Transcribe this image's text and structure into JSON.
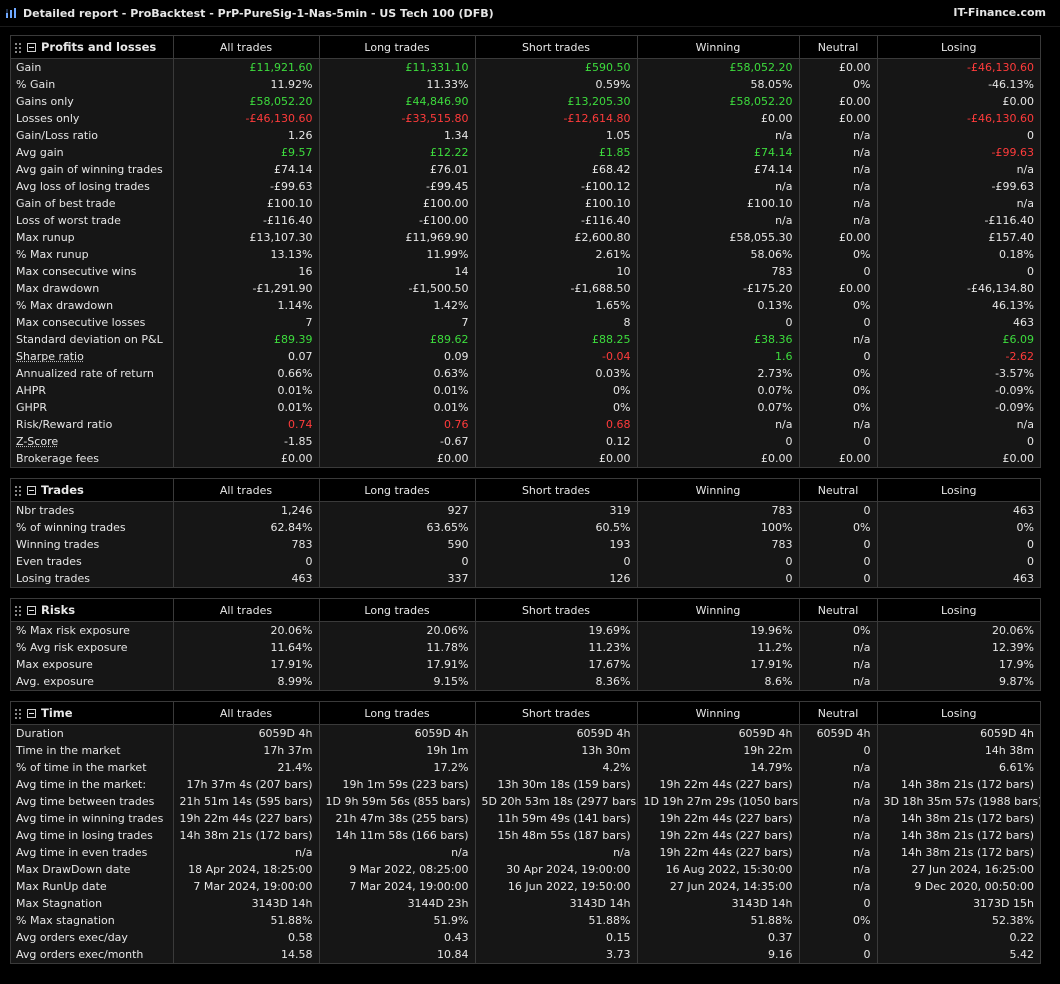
{
  "window": {
    "title": "Detailed report - ProBacktest - PrP-PureSig-1-Nas-5min - US Tech 100 (DFB)",
    "brand": "IT-Finance.com"
  },
  "columns": [
    "All trades",
    "Long trades",
    "Short trades",
    "Winning",
    "Neutral",
    "Losing"
  ],
  "colors": {
    "positive": "#3ddc3d",
    "negative": "#ff3b3b"
  },
  "sections": [
    {
      "id": "profits-and-losses",
      "title": "Profits and losses",
      "rows": [
        {
          "label": "Gain",
          "values": [
            "£11,921.60",
            "£11,331.10",
            "£590.50",
            "£58,052.20",
            "£0.00",
            "-£46,130.60"
          ],
          "colors": [
            "pos",
            "pos",
            "pos",
            "pos",
            "",
            "neg"
          ]
        },
        {
          "label": "% Gain",
          "values": [
            "11.92%",
            "11.33%",
            "0.59%",
            "58.05%",
            "0%",
            "-46.13%"
          ]
        },
        {
          "label": "Gains only",
          "values": [
            "£58,052.20",
            "£44,846.90",
            "£13,205.30",
            "£58,052.20",
            "£0.00",
            "£0.00"
          ],
          "colors": [
            "pos",
            "pos",
            "pos",
            "pos",
            "",
            ""
          ]
        },
        {
          "label": "Losses only",
          "values": [
            "-£46,130.60",
            "-£33,515.80",
            "-£12,614.80",
            "£0.00",
            "£0.00",
            "-£46,130.60"
          ],
          "colors": [
            "neg",
            "neg",
            "neg",
            "",
            "",
            "neg"
          ]
        },
        {
          "label": "Gain/Loss ratio",
          "values": [
            "1.26",
            "1.34",
            "1.05",
            "n/a",
            "n/a",
            "0"
          ]
        },
        {
          "label": "Avg gain",
          "values": [
            "£9.57",
            "£12.22",
            "£1.85",
            "£74.14",
            "n/a",
            "-£99.63"
          ],
          "colors": [
            "pos",
            "pos",
            "pos",
            "pos",
            "",
            "neg"
          ]
        },
        {
          "label": "Avg gain of winning trades",
          "values": [
            "£74.14",
            "£76.01",
            "£68.42",
            "£74.14",
            "n/a",
            "n/a"
          ]
        },
        {
          "label": "Avg loss of losing trades",
          "values": [
            "-£99.63",
            "-£99.45",
            "-£100.12",
            "n/a",
            "n/a",
            "-£99.63"
          ]
        },
        {
          "label": "Gain of best trade",
          "values": [
            "£100.10",
            "£100.00",
            "£100.10",
            "£100.10",
            "n/a",
            "n/a"
          ]
        },
        {
          "label": "Loss of worst trade",
          "values": [
            "-£116.40",
            "-£100.00",
            "-£116.40",
            "n/a",
            "n/a",
            "-£116.40"
          ]
        },
        {
          "label": "Max runup",
          "values": [
            "£13,107.30",
            "£11,969.90",
            "£2,600.80",
            "£58,055.30",
            "£0.00",
            "£157.40"
          ]
        },
        {
          "label": "% Max runup",
          "values": [
            "13.13%",
            "11.99%",
            "2.61%",
            "58.06%",
            "0%",
            "0.18%"
          ]
        },
        {
          "label": "Max consecutive wins",
          "values": [
            "16",
            "14",
            "10",
            "783",
            "0",
            "0"
          ]
        },
        {
          "label": "Max drawdown",
          "values": [
            "-£1,291.90",
            "-£1,500.50",
            "-£1,688.50",
            "-£175.20",
            "£0.00",
            "-£46,134.80"
          ]
        },
        {
          "label": "% Max drawdown",
          "values": [
            "1.14%",
            "1.42%",
            "1.65%",
            "0.13%",
            "0%",
            "46.13%"
          ]
        },
        {
          "label": "Max consecutive losses",
          "values": [
            "7",
            "7",
            "8",
            "0",
            "0",
            "463"
          ]
        },
        {
          "label": "Standard deviation on P&L",
          "values": [
            "£89.39",
            "£89.62",
            "£88.25",
            "£38.36",
            "n/a",
            "£6.09"
          ],
          "colors": [
            "pos",
            "pos",
            "pos",
            "pos",
            "",
            "pos"
          ]
        },
        {
          "label": "Sharpe ratio",
          "dotted": true,
          "values": [
            "0.07",
            "0.09",
            "-0.04",
            "1.6",
            "0",
            "-2.62"
          ],
          "colors": [
            "",
            "",
            "neg",
            "pos",
            "",
            "neg"
          ]
        },
        {
          "label": "Annualized rate of return",
          "values": [
            "0.66%",
            "0.63%",
            "0.03%",
            "2.73%",
            "0%",
            "-3.57%"
          ]
        },
        {
          "label": "AHPR",
          "values": [
            "0.01%",
            "0.01%",
            "0%",
            "0.07%",
            "0%",
            "-0.09%"
          ]
        },
        {
          "label": "GHPR",
          "values": [
            "0.01%",
            "0.01%",
            "0%",
            "0.07%",
            "0%",
            "-0.09%"
          ]
        },
        {
          "label": "Risk/Reward ratio",
          "values": [
            "0.74",
            "0.76",
            "0.68",
            "n/a",
            "n/a",
            "n/a"
          ],
          "colors": [
            "neg",
            "neg",
            "neg",
            "",
            "",
            ""
          ]
        },
        {
          "label": "Z-Score",
          "dotted": true,
          "values": [
            "-1.85",
            "-0.67",
            "0.12",
            "0",
            "0",
            "0"
          ]
        },
        {
          "label": "Brokerage fees",
          "values": [
            "£0.00",
            "£0.00",
            "£0.00",
            "£0.00",
            "£0.00",
            "£0.00"
          ]
        }
      ]
    },
    {
      "id": "trades",
      "title": "Trades",
      "rows": [
        {
          "label": "Nbr trades",
          "values": [
            "1,246",
            "927",
            "319",
            "783",
            "0",
            "463"
          ]
        },
        {
          "label": "% of winning trades",
          "values": [
            "62.84%",
            "63.65%",
            "60.5%",
            "100%",
            "0%",
            "0%"
          ]
        },
        {
          "label": "Winning trades",
          "values": [
            "783",
            "590",
            "193",
            "783",
            "0",
            "0"
          ]
        },
        {
          "label": "Even trades",
          "values": [
            "0",
            "0",
            "0",
            "0",
            "0",
            "0"
          ]
        },
        {
          "label": "Losing trades",
          "values": [
            "463",
            "337",
            "126",
            "0",
            "0",
            "463"
          ]
        }
      ]
    },
    {
      "id": "risks",
      "title": "Risks",
      "rows": [
        {
          "label": "% Max risk exposure",
          "values": [
            "20.06%",
            "20.06%",
            "19.69%",
            "19.96%",
            "0%",
            "20.06%"
          ]
        },
        {
          "label": "% Avg risk exposure",
          "values": [
            "11.64%",
            "11.78%",
            "11.23%",
            "11.2%",
            "n/a",
            "12.39%"
          ]
        },
        {
          "label": "Max exposure",
          "values": [
            "17.91%",
            "17.91%",
            "17.67%",
            "17.91%",
            "n/a",
            "17.9%"
          ]
        },
        {
          "label": "Avg. exposure",
          "values": [
            "8.99%",
            "9.15%",
            "8.36%",
            "8.6%",
            "n/a",
            "9.87%"
          ]
        }
      ]
    },
    {
      "id": "time",
      "title": "Time",
      "rows": [
        {
          "label": "Duration",
          "values": [
            "6059D 4h",
            "6059D 4h",
            "6059D 4h",
            "6059D 4h",
            "6059D 4h",
            "6059D 4h"
          ]
        },
        {
          "label": "Time in the market",
          "values": [
            "17h 37m",
            "19h 1m",
            "13h 30m",
            "19h 22m",
            "0",
            "14h 38m"
          ]
        },
        {
          "label": "% of time in the market",
          "values": [
            "21.4%",
            "17.2%",
            "4.2%",
            "14.79%",
            "n/a",
            "6.61%"
          ]
        },
        {
          "label": "Avg time in the market:",
          "values": [
            "17h 37m 4s (207 bars)",
            "19h 1m 59s (223 bars)",
            "13h 30m 18s (159 bars)",
            "19h 22m 44s (227 bars)",
            "n/a",
            "14h 38m 21s (172 bars)"
          ]
        },
        {
          "label": "Avg time between trades",
          "values": [
            "21h 51m 14s (595 bars)",
            "1D 9h 59m 56s (855 bars)",
            "5D 20h 53m 18s (2977 bars)",
            "1D 19h 27m 29s (1050 bars)",
            "n/a",
            "3D 18h 35m 57s (1988 bars)"
          ]
        },
        {
          "label": "Avg time in winning trades",
          "values": [
            "19h 22m 44s (227 bars)",
            "21h 47m 38s (255 bars)",
            "11h 59m 49s (141 bars)",
            "19h 22m 44s (227 bars)",
            "n/a",
            "14h 38m 21s (172 bars)"
          ]
        },
        {
          "label": "Avg time in losing trades",
          "values": [
            "14h 38m 21s (172 bars)",
            "14h 11m 58s (166 bars)",
            "15h 48m 55s (187 bars)",
            "19h 22m 44s (227 bars)",
            "n/a",
            "14h 38m 21s (172 bars)"
          ]
        },
        {
          "label": "Avg time in even trades",
          "values": [
            "n/a",
            "n/a",
            "n/a",
            "19h 22m 44s (227 bars)",
            "n/a",
            "14h 38m 21s (172 bars)"
          ]
        },
        {
          "label": "Max DrawDown date",
          "values": [
            "18 Apr 2024, 18:25:00",
            "9 Mar 2022, 08:25:00",
            "30 Apr 2024, 19:00:00",
            "16 Aug 2022, 15:30:00",
            "n/a",
            "27 Jun 2024, 16:25:00"
          ]
        },
        {
          "label": "Max RunUp date",
          "values": [
            "7 Mar 2024, 19:00:00",
            "7 Mar 2024, 19:00:00",
            "16 Jun 2022, 19:50:00",
            "27 Jun 2024, 14:35:00",
            "n/a",
            "9 Dec 2020, 00:50:00"
          ]
        },
        {
          "label": "Max Stagnation",
          "values": [
            "3143D 14h",
            "3144D 23h",
            "3143D 14h",
            "3143D 14h",
            "0",
            "3173D 15h"
          ]
        },
        {
          "label": "% Max stagnation",
          "values": [
            "51.88%",
            "51.9%",
            "51.88%",
            "51.88%",
            "0%",
            "52.38%"
          ]
        },
        {
          "label": "Avg orders exec/day",
          "values": [
            "0.58",
            "0.43",
            "0.15",
            "0.37",
            "0",
            "0.22"
          ]
        },
        {
          "label": "Avg orders exec/month",
          "values": [
            "14.58",
            "10.84",
            "3.73",
            "9.16",
            "0",
            "5.42"
          ]
        }
      ]
    }
  ]
}
